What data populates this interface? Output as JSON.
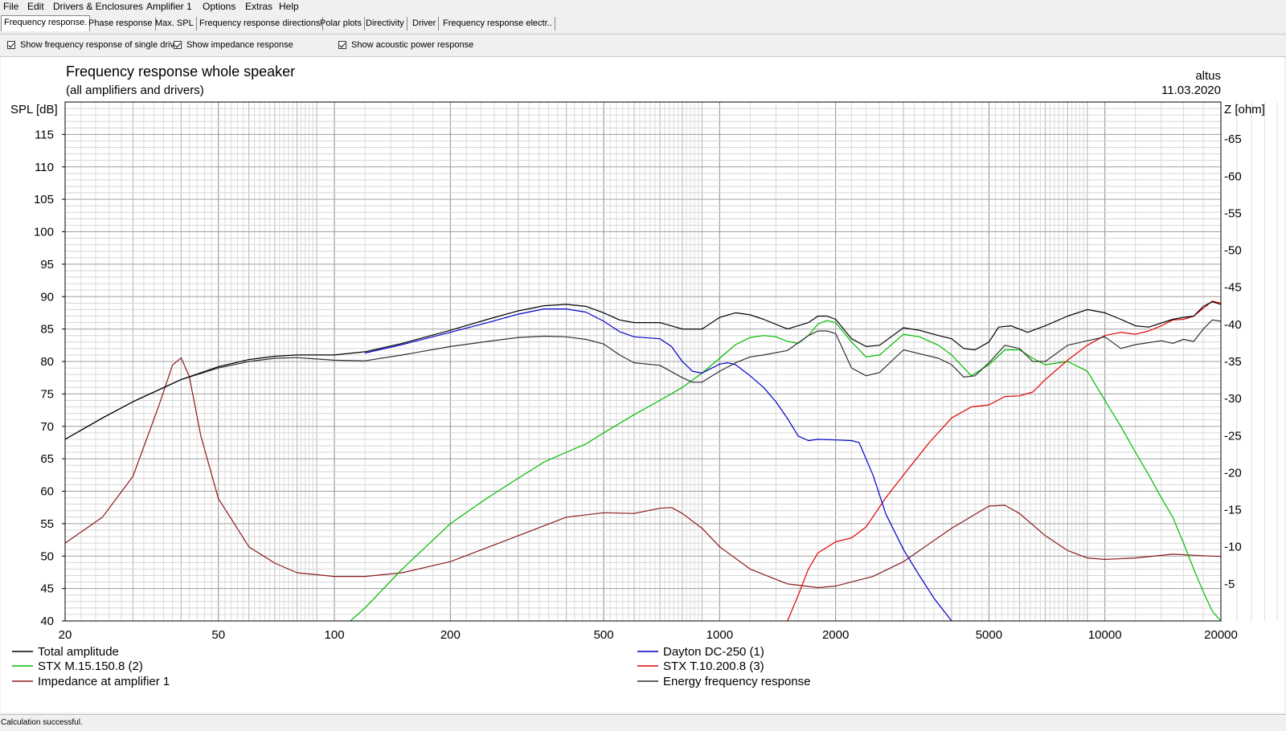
{
  "menu": [
    "File",
    "Edit",
    "Drivers & Enclosures",
    "Amplifier 1",
    "Options",
    "Extras",
    "Help"
  ],
  "tabs": [
    "Frequency response.",
    "Phase response",
    "Max. SPL",
    "Frequency response directions",
    "Polar plots",
    "Directivity",
    "Driver",
    "Frequency response electr.."
  ],
  "active_tab": 0,
  "options": [
    {
      "label": "Show frequency response of single drive",
      "checked": true
    },
    {
      "label": "Show impedance response",
      "checked": true
    },
    {
      "label": "Show acoustic power response",
      "checked": true
    }
  ],
  "status": "Calculation successful.",
  "colors": {
    "total": "#000000",
    "mid": "#00bb00",
    "impedance": "#8b1a1a",
    "woofer": "#0000cc",
    "tweeter": "#e00000",
    "energy": "#303030",
    "grid": "#b4b4b4"
  },
  "chart_data": {
    "type": "line",
    "title": "Frequency response whole speaker",
    "subtitle": "(all amplifiers and drivers)",
    "project": "altus",
    "date": "11.03.2020",
    "ylabel": "SPL [dB]",
    "y2label": "Z [ohm]",
    "xscale": "log",
    "xlim": [
      20,
      20000
    ],
    "ylim": [
      40,
      120
    ],
    "y2lim": [
      0,
      70
    ],
    "xticks": [
      20,
      50,
      100,
      200,
      500,
      1000,
      2000,
      5000,
      10000,
      20000
    ],
    "yticks": [
      40,
      45,
      50,
      55,
      60,
      65,
      70,
      75,
      80,
      85,
      90,
      95,
      100,
      105,
      110,
      115
    ],
    "y2ticks": [
      5,
      10,
      15,
      20,
      25,
      30,
      35,
      40,
      45,
      50,
      55,
      60,
      65
    ],
    "grid": true,
    "legend": [
      {
        "name": "Total amplitude",
        "series": "total"
      },
      {
        "name": "Dayton DC-250 (1)",
        "series": "woofer"
      },
      {
        "name": "STX M.15.150.8 (2)",
        "series": "mid"
      },
      {
        "name": "STX T.10.200.8 (3)",
        "series": "tweeter"
      },
      {
        "name": "Impedance at amplifier 1",
        "series": "impedance"
      },
      {
        "name": "Energy frequency response",
        "series": "energy"
      }
    ],
    "series": [
      {
        "id": "total",
        "axis": "left",
        "points": [
          [
            20,
            68
          ],
          [
            25,
            71.3
          ],
          [
            30,
            73.8
          ],
          [
            40,
            77.2
          ],
          [
            50,
            79.2
          ],
          [
            60,
            80.3
          ],
          [
            70,
            80.8
          ],
          [
            80,
            81
          ],
          [
            100,
            81
          ],
          [
            120,
            81.5
          ],
          [
            150,
            82.8
          ],
          [
            200,
            84.8
          ],
          [
            250,
            86.5
          ],
          [
            300,
            87.8
          ],
          [
            350,
            88.6
          ],
          [
            400,
            88.8
          ],
          [
            450,
            88.5
          ],
          [
            500,
            87.5
          ],
          [
            550,
            86.4
          ],
          [
            600,
            86
          ],
          [
            700,
            86
          ],
          [
            800,
            85
          ],
          [
            900,
            85
          ],
          [
            1000,
            86.8
          ],
          [
            1100,
            87.5
          ],
          [
            1200,
            87.2
          ],
          [
            1300,
            86.5
          ],
          [
            1500,
            85
          ],
          [
            1700,
            86
          ],
          [
            1800,
            87
          ],
          [
            1900,
            87
          ],
          [
            2000,
            86.5
          ],
          [
            2200,
            83.5
          ],
          [
            2400,
            82.3
          ],
          [
            2600,
            82.5
          ],
          [
            3000,
            85.2
          ],
          [
            3300,
            84.8
          ],
          [
            3700,
            84
          ],
          [
            4000,
            83.5
          ],
          [
            4300,
            82
          ],
          [
            4600,
            81.8
          ],
          [
            5000,
            83
          ],
          [
            5300,
            85.3
          ],
          [
            5700,
            85.5
          ],
          [
            6300,
            84.5
          ],
          [
            7000,
            85.5
          ],
          [
            8000,
            87
          ],
          [
            9000,
            88
          ],
          [
            10000,
            87.5
          ],
          [
            11000,
            86.5
          ],
          [
            12000,
            85.5
          ],
          [
            13000,
            85.3
          ],
          [
            15000,
            86.5
          ],
          [
            16000,
            86.8
          ],
          [
            17000,
            87
          ],
          [
            18000,
            88.5
          ],
          [
            19000,
            89.2
          ],
          [
            20000,
            88.8
          ]
        ]
      },
      {
        "id": "energy",
        "axis": "left",
        "points": [
          [
            20,
            68
          ],
          [
            25,
            71.3
          ],
          [
            30,
            73.8
          ],
          [
            40,
            77.2
          ],
          [
            50,
            79
          ],
          [
            60,
            80
          ],
          [
            70,
            80.5
          ],
          [
            80,
            80.6
          ],
          [
            100,
            80.2
          ],
          [
            120,
            80.1
          ],
          [
            150,
            81
          ],
          [
            200,
            82.3
          ],
          [
            250,
            83.1
          ],
          [
            300,
            83.7
          ],
          [
            350,
            83.9
          ],
          [
            400,
            83.8
          ],
          [
            450,
            83.4
          ],
          [
            500,
            82.7
          ],
          [
            550,
            81
          ],
          [
            600,
            79.8
          ],
          [
            700,
            79.4
          ],
          [
            800,
            77.5
          ],
          [
            850,
            76.8
          ],
          [
            900,
            76.8
          ],
          [
            1000,
            78.5
          ],
          [
            1100,
            79.8
          ],
          [
            1200,
            80.7
          ],
          [
            1300,
            81
          ],
          [
            1500,
            81.7
          ],
          [
            1700,
            84
          ],
          [
            1800,
            84.7
          ],
          [
            1900,
            84.7
          ],
          [
            2000,
            84.3
          ],
          [
            2200,
            79
          ],
          [
            2400,
            77.8
          ],
          [
            2600,
            78.3
          ],
          [
            3000,
            81.8
          ],
          [
            3300,
            81.2
          ],
          [
            3700,
            80.5
          ],
          [
            4000,
            79.5
          ],
          [
            4300,
            77.6
          ],
          [
            4600,
            77.8
          ],
          [
            5000,
            79.8
          ],
          [
            5500,
            82.5
          ],
          [
            6000,
            82
          ],
          [
            6500,
            80
          ],
          [
            7000,
            80
          ],
          [
            8000,
            82.5
          ],
          [
            9000,
            83.2
          ],
          [
            10000,
            83.8
          ],
          [
            11000,
            82
          ],
          [
            12000,
            82.6
          ],
          [
            14000,
            83.2
          ],
          [
            15000,
            82.8
          ],
          [
            16000,
            83.4
          ],
          [
            17000,
            83.1
          ],
          [
            18000,
            85
          ],
          [
            19000,
            86.4
          ],
          [
            20000,
            86.2
          ]
        ]
      },
      {
        "id": "woofer",
        "axis": "left",
        "points": [
          [
            120,
            81.3
          ],
          [
            150,
            82.6
          ],
          [
            200,
            84.5
          ],
          [
            250,
            86
          ],
          [
            300,
            87.3
          ],
          [
            350,
            88.1
          ],
          [
            400,
            88.1
          ],
          [
            450,
            87.6
          ],
          [
            500,
            86.2
          ],
          [
            550,
            84.6
          ],
          [
            600,
            83.8
          ],
          [
            700,
            83.5
          ],
          [
            750,
            82.3
          ],
          [
            800,
            80
          ],
          [
            850,
            78.5
          ],
          [
            900,
            78.2
          ],
          [
            1000,
            79.6
          ],
          [
            1050,
            79.8
          ],
          [
            1100,
            79.5
          ],
          [
            1200,
            77.8
          ],
          [
            1300,
            76
          ],
          [
            1400,
            73.8
          ],
          [
            1500,
            71.2
          ],
          [
            1600,
            68.5
          ],
          [
            1700,
            67.8
          ],
          [
            1800,
            68
          ],
          [
            2000,
            67.9
          ],
          [
            2200,
            67.8
          ],
          [
            2300,
            67.5
          ],
          [
            2500,
            62.5
          ],
          [
            2700,
            56.5
          ],
          [
            3000,
            51
          ],
          [
            3300,
            47
          ],
          [
            3600,
            43.5
          ],
          [
            4000,
            40
          ]
        ]
      },
      {
        "id": "mid",
        "axis": "left",
        "points": [
          [
            110,
            40
          ],
          [
            120,
            42
          ],
          [
            150,
            48
          ],
          [
            200,
            55
          ],
          [
            250,
            59
          ],
          [
            300,
            62
          ],
          [
            350,
            64.5
          ],
          [
            400,
            66
          ],
          [
            450,
            67.3
          ],
          [
            500,
            69
          ],
          [
            600,
            71.8
          ],
          [
            700,
            74
          ],
          [
            800,
            76
          ],
          [
            900,
            78.2
          ],
          [
            1000,
            80.5
          ],
          [
            1100,
            82.6
          ],
          [
            1200,
            83.7
          ],
          [
            1300,
            84
          ],
          [
            1400,
            83.8
          ],
          [
            1500,
            83.1
          ],
          [
            1600,
            82.8
          ],
          [
            1700,
            84
          ],
          [
            1800,
            85.8
          ],
          [
            1900,
            86.3
          ],
          [
            2000,
            86
          ],
          [
            2200,
            83
          ],
          [
            2400,
            80.7
          ],
          [
            2600,
            81
          ],
          [
            3000,
            84.2
          ],
          [
            3300,
            83.8
          ],
          [
            3700,
            82.5
          ],
          [
            4000,
            81
          ],
          [
            4500,
            77.8
          ],
          [
            5000,
            79.5
          ],
          [
            5500,
            81.8
          ],
          [
            6000,
            81.8
          ],
          [
            6500,
            80.5
          ],
          [
            7000,
            79.5
          ],
          [
            8000,
            80
          ],
          [
            9000,
            78.5
          ],
          [
            10000,
            74
          ],
          [
            11000,
            70
          ],
          [
            12000,
            66
          ],
          [
            13000,
            62.5
          ],
          [
            14000,
            59
          ],
          [
            15000,
            56
          ],
          [
            16000,
            52
          ],
          [
            17000,
            48
          ],
          [
            18000,
            44.5
          ],
          [
            19000,
            41.5
          ],
          [
            20000,
            40
          ]
        ]
      },
      {
        "id": "tweeter",
        "axis": "left",
        "points": [
          [
            1500,
            40
          ],
          [
            1600,
            44
          ],
          [
            1700,
            48
          ],
          [
            1800,
            50.5
          ],
          [
            2000,
            52.2
          ],
          [
            2200,
            52.8
          ],
          [
            2400,
            54.5
          ],
          [
            2700,
            59
          ],
          [
            3000,
            62.5
          ],
          [
            3500,
            67.5
          ],
          [
            4000,
            71.3
          ],
          [
            4500,
            73
          ],
          [
            5000,
            73.3
          ],
          [
            5500,
            74.6
          ],
          [
            6000,
            74.7
          ],
          [
            6500,
            75.3
          ],
          [
            7000,
            77.2
          ],
          [
            8000,
            80.2
          ],
          [
            9000,
            82.5
          ],
          [
            10000,
            84
          ],
          [
            11000,
            84.5
          ],
          [
            12000,
            84.2
          ],
          [
            13000,
            84.7
          ],
          [
            14000,
            85.5
          ],
          [
            15000,
            86.4
          ],
          [
            16000,
            86.5
          ],
          [
            17000,
            87
          ],
          [
            18000,
            88.2
          ],
          [
            19000,
            89.3
          ],
          [
            20000,
            89
          ]
        ]
      },
      {
        "id": "impedance",
        "axis": "right",
        "points": [
          [
            20,
            10.5
          ],
          [
            25,
            14
          ],
          [
            30,
            19.5
          ],
          [
            35,
            29
          ],
          [
            38,
            34.5
          ],
          [
            40,
            35.5
          ],
          [
            42,
            33
          ],
          [
            45,
            25
          ],
          [
            50,
            16.5
          ],
          [
            60,
            10
          ],
          [
            70,
            7.8
          ],
          [
            80,
            6.5
          ],
          [
            100,
            6
          ],
          [
            120,
            6
          ],
          [
            150,
            6.5
          ],
          [
            200,
            8
          ],
          [
            300,
            11.5
          ],
          [
            400,
            14
          ],
          [
            500,
            14.6
          ],
          [
            600,
            14.5
          ],
          [
            700,
            15.2
          ],
          [
            750,
            15.3
          ],
          [
            800,
            14.5
          ],
          [
            900,
            12.5
          ],
          [
            1000,
            10
          ],
          [
            1200,
            7
          ],
          [
            1500,
            5
          ],
          [
            1800,
            4.5
          ],
          [
            2000,
            4.7
          ],
          [
            2500,
            6
          ],
          [
            3000,
            8
          ],
          [
            4000,
            12.5
          ],
          [
            5000,
            15.5
          ],
          [
            5500,
            15.6
          ],
          [
            6000,
            14.5
          ],
          [
            7000,
            11.5
          ],
          [
            8000,
            9.5
          ],
          [
            9000,
            8.5
          ],
          [
            10000,
            8.3
          ],
          [
            12000,
            8.5
          ],
          [
            15000,
            9
          ],
          [
            18000,
            8.8
          ],
          [
            20000,
            8.7
          ]
        ]
      }
    ]
  }
}
